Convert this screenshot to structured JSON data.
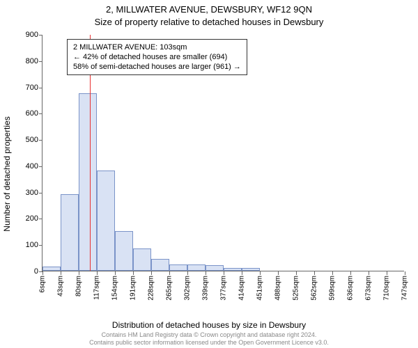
{
  "title_main": "2, MILLWATER AVENUE, DEWSBURY, WF12 9QN",
  "title_sub": "Size of property relative to detached houses in Dewsbury",
  "y_axis_label": "Number of detached properties",
  "x_axis_label": "Distribution of detached houses by size in Dewsbury",
  "footer_line1": "Contains HM Land Registry data © Crown copyright and database right 2024.",
  "footer_line2": "Contains public sector information licensed under the Open Government Licence v3.0.",
  "chart": {
    "type": "histogram",
    "background_color": "#ffffff",
    "axis_color": "#666666",
    "text_color": "#000000",
    "bar_fill": "#d9e2f4",
    "bar_stroke": "#7a93c8",
    "marker_color": "#e83030",
    "ylim": [
      0,
      900
    ],
    "ytick_step": 100,
    "y_ticks": [
      0,
      100,
      200,
      300,
      400,
      500,
      600,
      700,
      800,
      900
    ],
    "x_labels": [
      "6sqm",
      "43sqm",
      "80sqm",
      "117sqm",
      "154sqm",
      "191sqm",
      "228sqm",
      "265sqm",
      "302sqm",
      "339sqm",
      "377sqm",
      "414sqm",
      "451sqm",
      "488sqm",
      "525sqm",
      "562sqm",
      "599sqm",
      "636sqm",
      "673sqm",
      "710sqm",
      "747sqm"
    ],
    "values": [
      15,
      290,
      675,
      380,
      150,
      85,
      45,
      25,
      25,
      20,
      10,
      10,
      0,
      0,
      0,
      0,
      0,
      0,
      0,
      0
    ],
    "marker_value_sqm": 103,
    "x_min_sqm": 6,
    "x_max_sqm": 747,
    "annotation_lines": [
      "2 MILLWATER AVENUE: 103sqm",
      "← 42% of detached houses are smaller (694)",
      "58% of semi-detached houses are larger (961) →"
    ],
    "tick_fontsize": 11,
    "label_fontsize": 12,
    "title_fontsize": 13,
    "footer_fontsize": 9,
    "footer_color": "#888888"
  }
}
